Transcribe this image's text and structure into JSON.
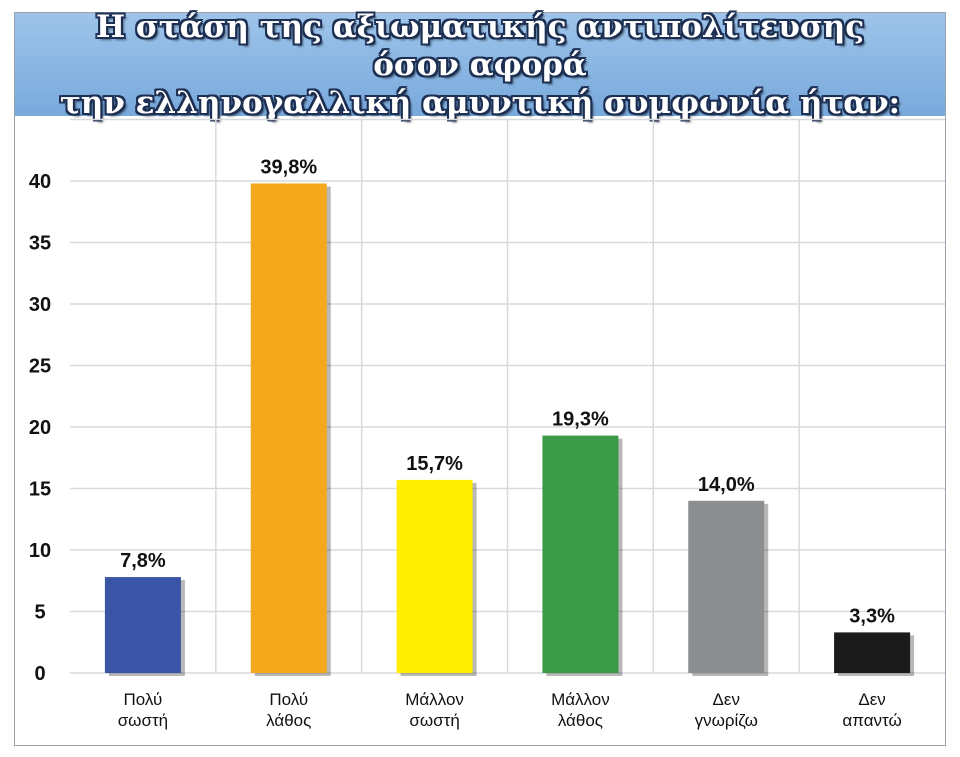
{
  "chart_data": {
    "type": "bar",
    "title_lines": [
      "Η στάση της αξιωματικής αντιπολίτευσης όσον αφορά",
      "την ελληνογαλλική αμυντική συμφωνία ήταν:"
    ],
    "categories": [
      [
        "Πολύ",
        "σωστή"
      ],
      [
        "Πολύ",
        "λάθος"
      ],
      [
        "Μάλλον",
        "σωστή"
      ],
      [
        "Μάλλον",
        "λάθος"
      ],
      [
        "Δεν",
        "γνωρίζω"
      ],
      [
        "Δεν",
        "απαντώ"
      ]
    ],
    "values": [
      7.8,
      39.8,
      15.7,
      19.3,
      14.0,
      3.3
    ],
    "value_labels": [
      "7,8%",
      "39,8%",
      "15,7%",
      "19,3%",
      "14,0%",
      "3,3%"
    ],
    "colors": [
      "#3b55a6",
      "#f6a81c",
      "#ffee00",
      "#3a9a48",
      "#8c8e90",
      "#1b1b1b"
    ],
    "yticks": [
      0,
      5,
      10,
      15,
      20,
      25,
      30,
      35,
      40
    ],
    "ylim": [
      0,
      45
    ],
    "grid": true,
    "legend": "none"
  }
}
